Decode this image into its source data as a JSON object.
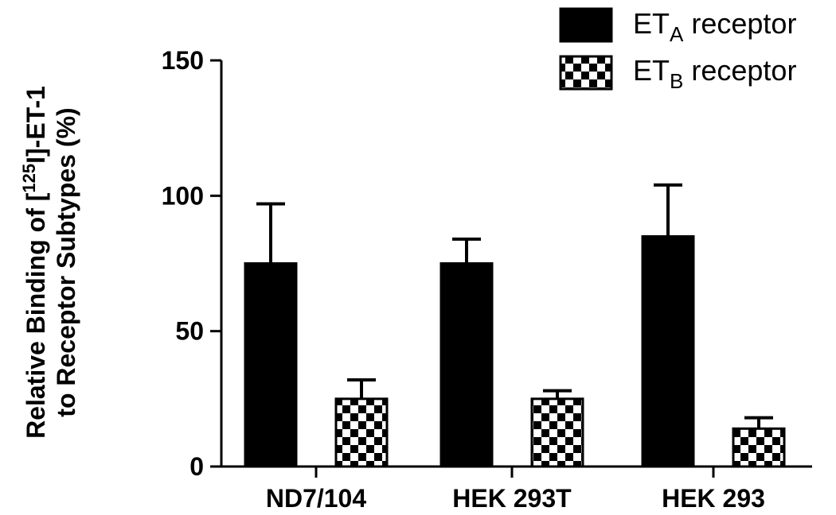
{
  "chart_data": {
    "type": "bar",
    "categories": [
      "ND7/104",
      "HEK 293T",
      "HEK 293"
    ],
    "series": [
      {
        "name": "ETA receptor",
        "name_main": "ET",
        "name_sub": "A",
        "name_rest": " receptor",
        "pattern": "solid",
        "color": "#000000",
        "values": [
          75,
          75,
          85
        ],
        "error_upper": [
          97,
          84,
          104
        ]
      },
      {
        "name": "ETB receptor",
        "name_main": "ET",
        "name_sub": "B",
        "name_rest": " receptor",
        "pattern": "checker",
        "color": "#000000",
        "values": [
          25,
          25,
          14
        ],
        "error_upper": [
          32,
          28,
          18
        ]
      }
    ],
    "ylabel_line1": {
      "pre": "Relative Binding of [",
      "sup": "125",
      "post": "I]-ET-1"
    },
    "ylabel_line2": "to Receptor Subtypes (%)",
    "ylim": [
      0,
      150
    ],
    "yticks": [
      0,
      50,
      100,
      150
    ],
    "grid": false,
    "legend_position": "top-right"
  }
}
